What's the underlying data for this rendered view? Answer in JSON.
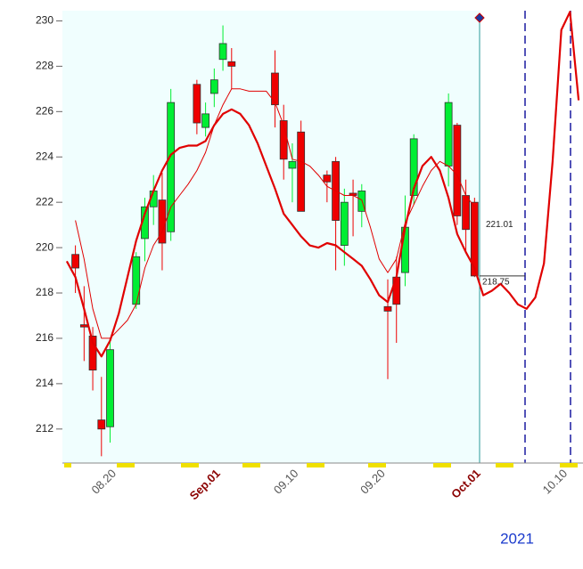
{
  "chart_data": {
    "type": "candlestick",
    "categories": [
      null,
      null,
      null,
      null,
      null,
      "08.20",
      null,
      null,
      null,
      null,
      null,
      null,
      null,
      null,
      null,
      null,
      null,
      "Sep.01",
      null,
      null,
      null,
      null,
      null,
      null,
      null,
      null,
      "09.10",
      null,
      null,
      null,
      null,
      null,
      null,
      null,
      null,
      null,
      "09.20",
      null,
      null,
      null,
      null,
      null,
      null,
      null,
      null,
      null,
      null,
      "Oct.01",
      null,
      null,
      null,
      null,
      null,
      null,
      null,
      null,
      null,
      "10.10",
      null,
      null
    ],
    "open": [
      null,
      219.7,
      216.6,
      216.1,
      212.4,
      212.1,
      null,
      null,
      217.5,
      220.4,
      221.8,
      222.1,
      220.7,
      null,
      null,
      227.2,
      225.3,
      226.8,
      228.3,
      228.2,
      null,
      null,
      null,
      null,
      227.7,
      225.6,
      223.5,
      225.1,
      null,
      null,
      223.2,
      223.8,
      220.1,
      222.4,
      221.6,
      null,
      null,
      217.4,
      218.7,
      218.9,
      222.3,
      null,
      null,
      null,
      223.6,
      225.4,
      222.3,
      222.0,
      null,
      null,
      null,
      null,
      null,
      null,
      null,
      null,
      null,
      null,
      null,
      null
    ],
    "high": [
      null,
      220.1,
      218.3,
      216.5,
      214.3,
      216.0,
      null,
      null,
      219.8,
      222.2,
      223.2,
      223.3,
      227.0,
      null,
      null,
      227.4,
      226.4,
      227.9,
      229.8,
      228.8,
      null,
      null,
      null,
      null,
      228.7,
      226.3,
      224.6,
      225.6,
      null,
      null,
      223.4,
      224.0,
      222.6,
      223.0,
      222.8,
      null,
      null,
      218.6,
      219.6,
      222.3,
      225.0,
      null,
      null,
      null,
      226.8,
      225.5,
      223.0,
      222.2,
      null,
      null,
      null,
      null,
      null,
      null,
      null,
      null,
      null,
      null,
      null,
      null
    ],
    "low": [
      null,
      218.0,
      215.0,
      213.7,
      210.8,
      211.4,
      null,
      null,
      217.3,
      219.4,
      221.0,
      219.0,
      220.3,
      null,
      null,
      225.0,
      224.9,
      226.2,
      227.8,
      227.0,
      null,
      null,
      null,
      null,
      225.3,
      223.0,
      222.0,
      221.6,
      null,
      null,
      222.0,
      219.0,
      219.2,
      220.5,
      220.9,
      null,
      null,
      214.2,
      215.8,
      218.3,
      221.9,
      null,
      null,
      null,
      222.7,
      221.0,
      219.8,
      218.7,
      null,
      null,
      null,
      null,
      null,
      null,
      null,
      null,
      null,
      null,
      null,
      null
    ],
    "close": [
      null,
      219.1,
      216.5,
      214.6,
      212.0,
      215.5,
      null,
      null,
      219.6,
      221.8,
      222.5,
      220.2,
      226.4,
      null,
      null,
      225.5,
      225.9,
      227.4,
      229.0,
      228.0,
      null,
      null,
      null,
      null,
      226.3,
      223.9,
      223.8,
      221.6,
      null,
      null,
      222.9,
      221.2,
      222.0,
      222.3,
      222.5,
      null,
      null,
      217.2,
      217.5,
      220.9,
      224.8,
      null,
      null,
      null,
      226.4,
      221.4,
      220.8,
      218.75,
      null,
      null,
      null,
      null,
      null,
      null,
      null,
      null,
      null,
      null,
      null,
      null
    ],
    "up_color": "#00ee33",
    "down_color": "#ee0000",
    "series": [
      {
        "color": "#e00000",
        "style": "thick",
        "values": [
          219.4,
          218.7,
          217.3,
          215.8,
          215.2,
          215.9,
          217.1,
          218.7,
          220.3,
          221.5,
          222.5,
          223.4,
          224.1,
          224.4,
          224.5,
          224.5,
          224.7,
          225.4,
          225.9,
          226.1,
          225.9,
          225.4,
          224.6,
          223.6,
          222.6,
          221.5,
          221.0,
          220.5,
          220.1,
          220.0,
          220.2,
          220.1,
          219.8,
          219.5,
          219.2,
          218.6,
          217.9,
          217.6,
          218.7,
          220.9,
          222.6,
          223.6,
          224.0,
          223.4,
          222.2,
          220.6,
          219.8,
          219.1,
          217.9,
          218.1,
          218.4,
          218.0,
          217.5,
          217.3,
          217.8,
          219.3,
          223.8,
          229.6,
          230.4,
          226.5
        ]
      },
      {
        "color": "#e00000",
        "style": "thin",
        "values": [
          null,
          221.2,
          219.5,
          217.3,
          216.0,
          216.0,
          216.4,
          216.8,
          217.5,
          219.1,
          220.1,
          220.7,
          221.8,
          222.3,
          222.8,
          223.4,
          224.2,
          225.4,
          226.3,
          227.0,
          227.0,
          226.9,
          226.9,
          226.9,
          226.4,
          225.4,
          223.9,
          223.8,
          223.6,
          223.2,
          222.7,
          222.5,
          222.3,
          222.3,
          222.1,
          220.9,
          219.5,
          218.9,
          219.5,
          221.1,
          221.9,
          222.7,
          223.4,
          223.8,
          223.6,
          223.2,
          222.3,
          221.8,
          null,
          null,
          null,
          null,
          null,
          null,
          null,
          null,
          null,
          null,
          null,
          null
        ]
      }
    ],
    "annotations": [
      {
        "text": "221.01",
        "value": 221.01
      },
      {
        "text": "218.75",
        "value": 218.75,
        "line": true
      }
    ],
    "ylim": [
      210.5,
      230.45
    ],
    "yticks": [
      212,
      214,
      216,
      218,
      220,
      222,
      224,
      226,
      228,
      230
    ],
    "year_label": "2021"
  }
}
